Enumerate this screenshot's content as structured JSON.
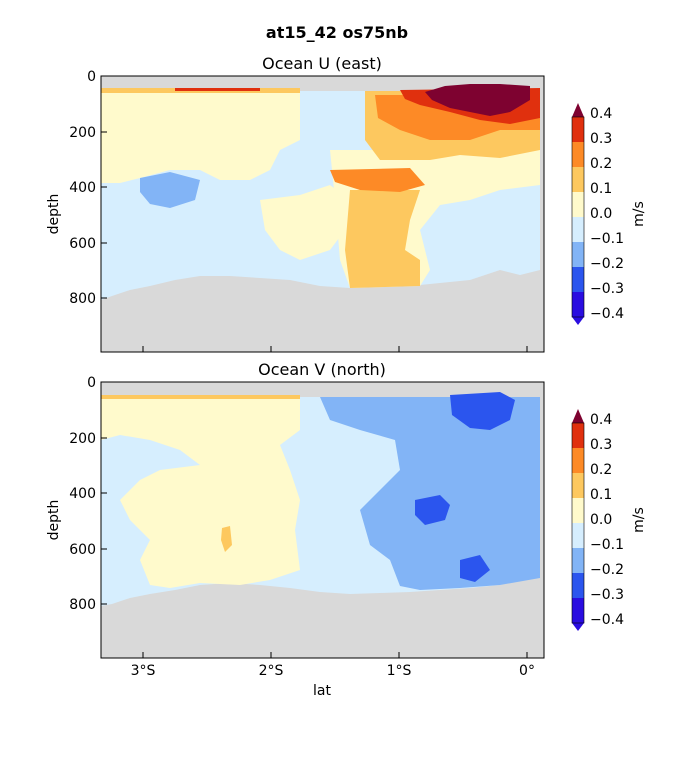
{
  "figure": {
    "suptitle": "at15_42 os75nb"
  },
  "chart_data": [
    {
      "type": "heatmap",
      "title": "Ocean U (east)",
      "ylabel": "depth",
      "xlabel": "",
      "x_ticks": [
        {
          "value": -3.0,
          "label": "3°S"
        },
        {
          "value": -2.0,
          "label": "2°S"
        },
        {
          "value": -1.0,
          "label": "1°S"
        },
        {
          "value": 0.0,
          "label": "0°"
        }
      ],
      "y_ticks": [
        {
          "value": 0,
          "label": "0"
        },
        {
          "value": 200,
          "label": "200"
        },
        {
          "value": 400,
          "label": "400"
        },
        {
          "value": 600,
          "label": "600"
        },
        {
          "value": 800,
          "label": "800"
        }
      ],
      "xlim": [
        -3.33,
        0.13
      ],
      "ylim": [
        990,
        0
      ],
      "colorbar": {
        "label": "m/s",
        "ticks": [
          "0.4",
          "0.3",
          "0.2",
          "0.1",
          "0.0",
          "−0.1",
          "−0.2",
          "−0.3",
          "−0.4"
        ]
      },
      "data_depth_range": [
        45,
        760
      ],
      "no_data_color": "#d9d9d9"
    },
    {
      "type": "heatmap",
      "title": "Ocean V (north)",
      "ylabel": "depth",
      "xlabel": "lat",
      "x_ticks": [
        {
          "value": -3.0,
          "label": "3°S"
        },
        {
          "value": -2.0,
          "label": "2°S"
        },
        {
          "value": -1.0,
          "label": "1°S"
        },
        {
          "value": 0.0,
          "label": "0°"
        }
      ],
      "y_ticks": [
        {
          "value": 0,
          "label": "0"
        },
        {
          "value": 200,
          "label": "200"
        },
        {
          "value": 400,
          "label": "400"
        },
        {
          "value": 600,
          "label": "600"
        },
        {
          "value": 800,
          "label": "800"
        }
      ],
      "xlim": [
        -3.33,
        0.13
      ],
      "ylim": [
        990,
        0
      ],
      "colorbar": {
        "label": "m/s",
        "ticks": [
          "0.4",
          "0.3",
          "0.2",
          "0.1",
          "0.0",
          "−0.1",
          "−0.2",
          "−0.3",
          "−0.4"
        ]
      },
      "data_depth_range": [
        45,
        760
      ],
      "no_data_color": "#d9d9d9"
    }
  ],
  "colormap": [
    "#2a0de0",
    "#2b55ee",
    "#82b4f6",
    "#d6eefe",
    "#fffacc",
    "#fdc85f",
    "#fd8a26",
    "#e0300e",
    "#7e0230"
  ]
}
